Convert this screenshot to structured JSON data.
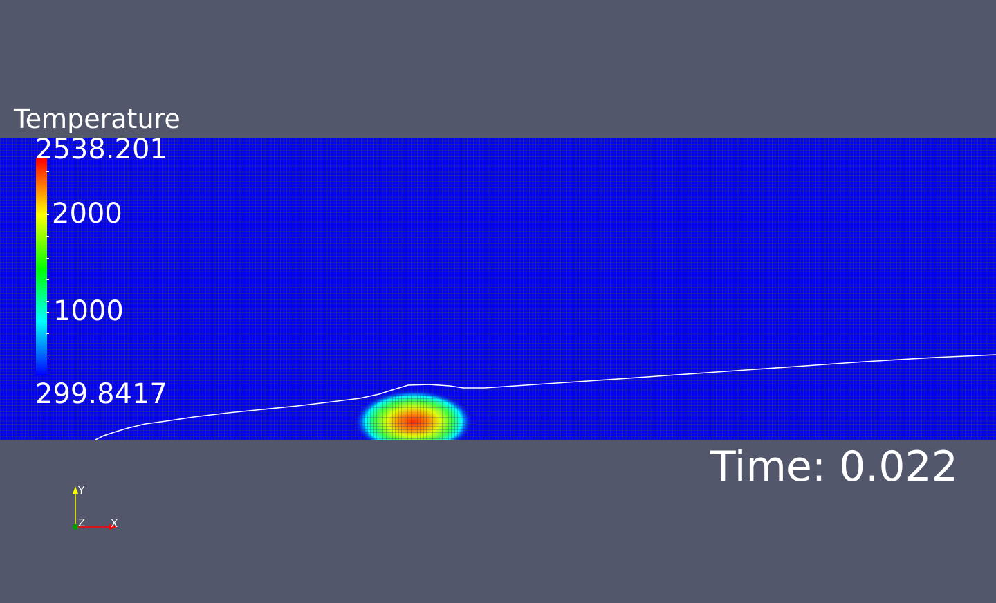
{
  "legend": {
    "title": "Temperature",
    "max_label": "2538.201",
    "min_label": "299.8417",
    "tick_labels": [
      "2000",
      "1000"
    ],
    "range": [
      299.8417,
      2538.201
    ],
    "colormap": [
      "#0000ff",
      "#00ffff",
      "#00ff00",
      "#ffff00",
      "#ff0000"
    ]
  },
  "time": {
    "label": "Time: 0.022",
    "value": 0.022
  },
  "axes": {
    "x_label": "X",
    "y_label": "Y",
    "z_label": "Z",
    "x_color": "#ff0000",
    "y_color": "#ffff00",
    "z_color": "#00a000"
  },
  "colors": {
    "background": "#52576b",
    "mesh_fill": "#0000ff",
    "mesh_grid": "#28288c",
    "interface_line": "#ffffff"
  }
}
